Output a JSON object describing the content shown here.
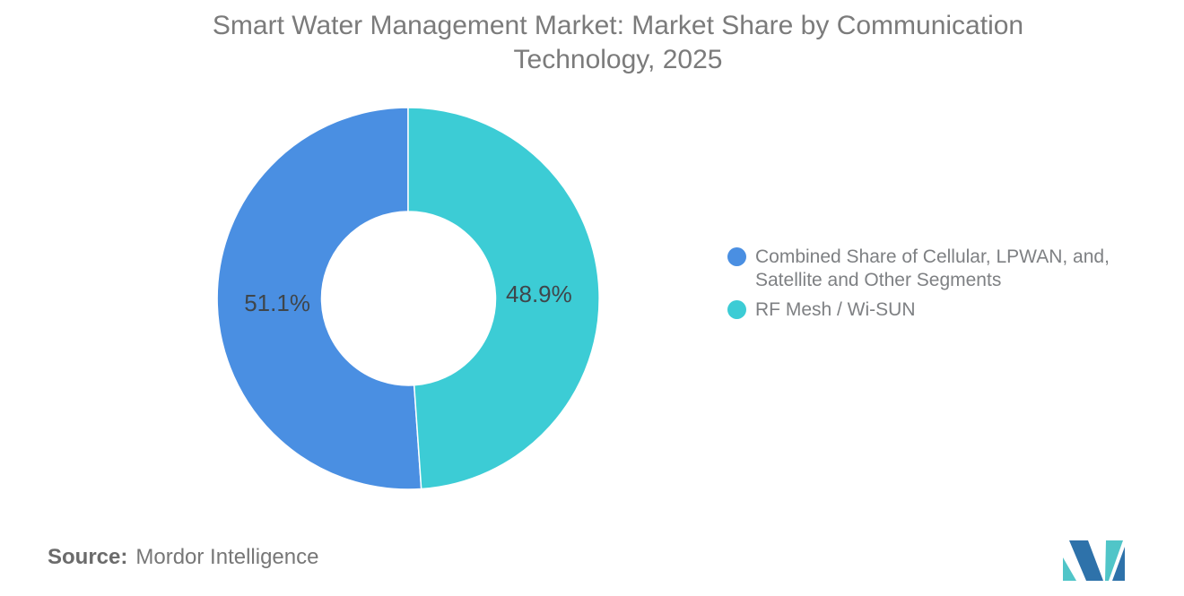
{
  "title": {
    "line1": "Smart Water Management Market: Market Share by Communication",
    "line2": "Technology, 2025"
  },
  "chart_data": {
    "type": "pie",
    "subtype": "donut",
    "title": "Smart Water Management Market: Market Share by Communication Technology, 2025",
    "units": "%",
    "slices": [
      {
        "name": "Combined Share of Cellular, LPWAN, and, Satellite and Other Segments",
        "value": 51.1,
        "label": "51.1%",
        "color": "#4A8FE2"
      },
      {
        "name": "RF Mesh / Wi-SUN",
        "value": 48.9,
        "label": "48.9%",
        "color": "#3CCCD5"
      }
    ],
    "layout": {
      "start_angle_deg": 0,
      "direction": "counterclockwise",
      "outer_radius": 213,
      "inner_radius": 97,
      "label_radius": 146,
      "label_color": "#3F464B",
      "label_font_size": 26,
      "slice_border_color": "#ffffff",
      "legend_position": "right"
    }
  },
  "legend": {
    "items": [
      {
        "label": "Combined Share of Cellular, LPWAN, and, Satellite and Other Segments",
        "color": "#4A8FE2"
      },
      {
        "label": "RF Mesh / Wi-SUN",
        "color": "#3CCCD5"
      }
    ]
  },
  "source": {
    "label": "Source:",
    "value": "Mordor Intelligence"
  },
  "logo": {
    "colors": {
      "blue": "#2E72AA",
      "teal": "#50C5C8"
    }
  }
}
